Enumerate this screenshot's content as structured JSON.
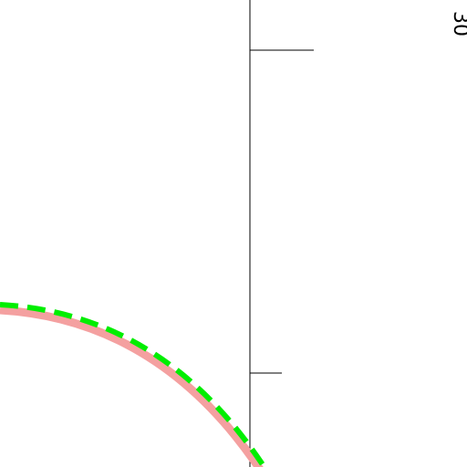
{
  "annotation": "30"
}
